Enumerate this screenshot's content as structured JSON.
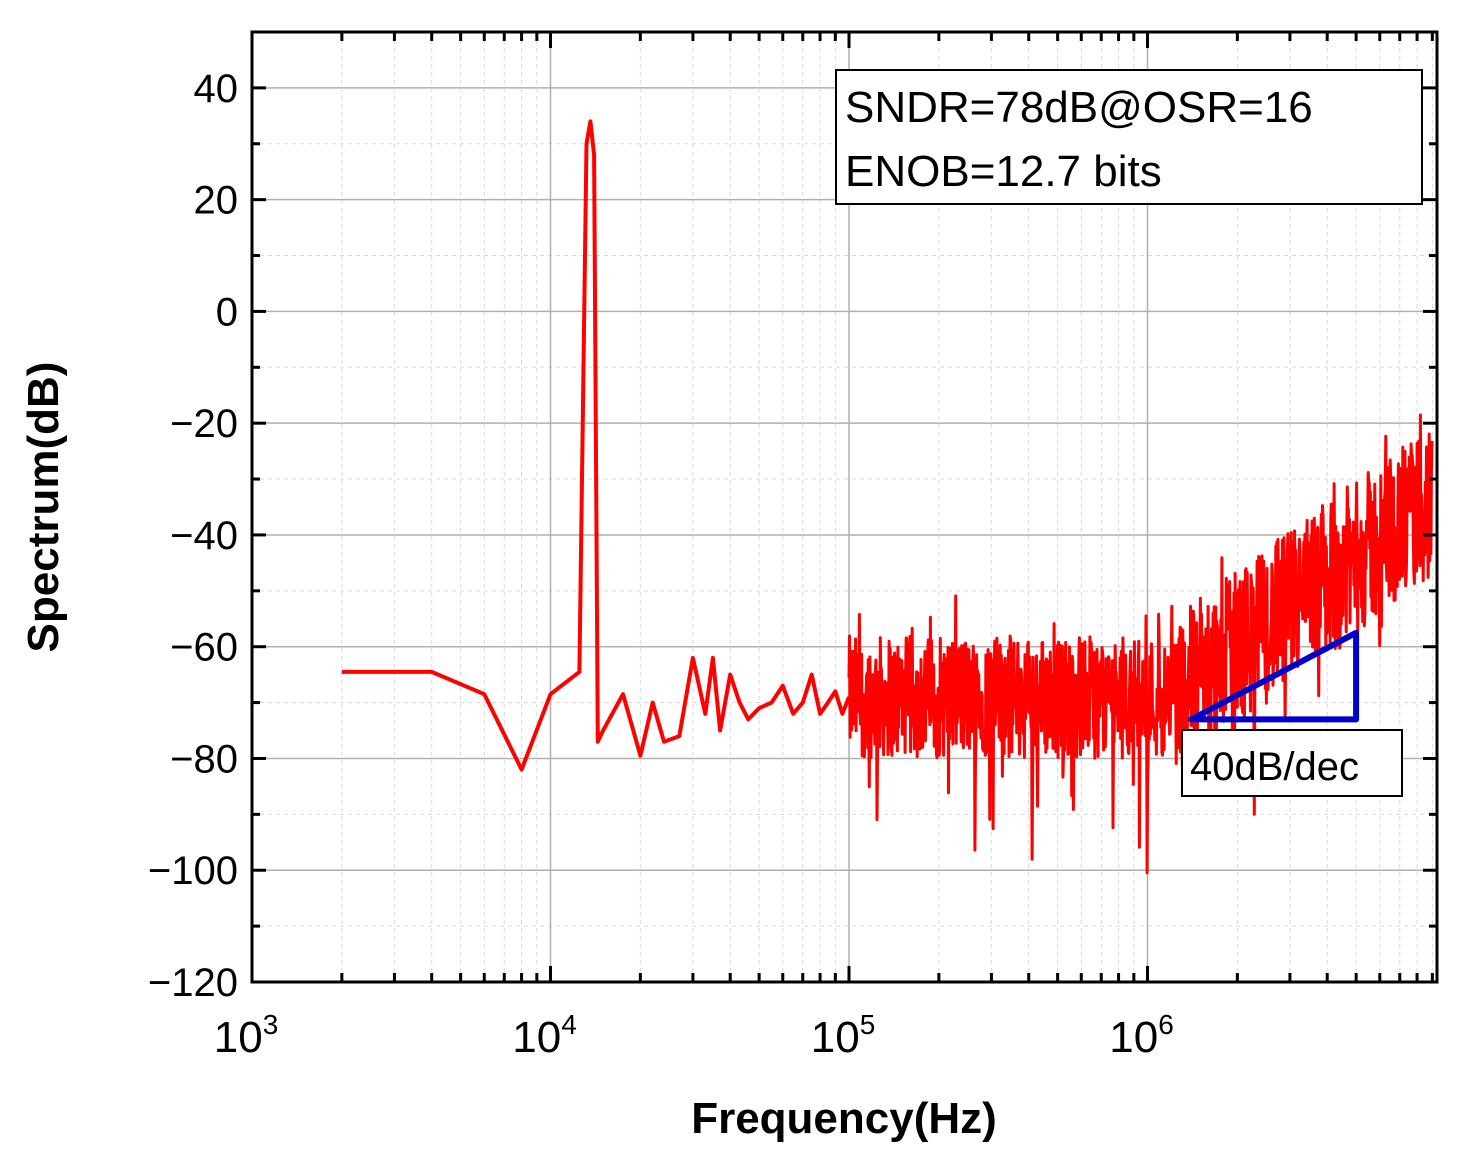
{
  "chart_data": {
    "type": "line",
    "title": "",
    "xlabel": "Frequency(Hz)",
    "ylabel": "Spectrum(dB)",
    "xscale": "log",
    "xlim": [
      1000,
      9000000
    ],
    "ylim": [
      -120,
      50
    ],
    "grid": true,
    "x_ticks": [
      {
        "value": 1000,
        "base": "10",
        "exp": "3"
      },
      {
        "value": 10000,
        "base": "10",
        "exp": "4"
      },
      {
        "value": 100000,
        "base": "10",
        "exp": "5"
      },
      {
        "value": 1000000,
        "base": "10",
        "exp": "6"
      }
    ],
    "y_ticks": [
      {
        "value": 40,
        "label": "40"
      },
      {
        "value": 20,
        "label": "20"
      },
      {
        "value": 0,
        "label": "0"
      },
      {
        "value": -20,
        "label": "−20"
      },
      {
        "value": -40,
        "label": "−40"
      },
      {
        "value": -60,
        "label": "−60"
      },
      {
        "value": -80,
        "label": "−80"
      },
      {
        "value": -100,
        "label": "−100"
      },
      {
        "value": -120,
        "label": "−120"
      }
    ],
    "series": [
      {
        "name": "Spectrum",
        "color": "#ff0000",
        "x": [
          2000,
          4000,
          6000,
          8000,
          10000,
          12500,
          13200,
          13600,
          14000,
          14400,
          15000,
          17500,
          20000,
          22000,
          24000,
          27000,
          30000,
          33000,
          35000,
          37000,
          40000,
          43000,
          46000,
          50000,
          55000,
          60000,
          65000,
          70000,
          75000,
          80000,
          85000,
          90000,
          95000,
          100000
        ],
        "values": [
          -64.5,
          -64.5,
          -68.5,
          -82,
          -68.5,
          -64.5,
          30,
          34,
          28,
          -77,
          -75,
          -68.5,
          -79.5,
          -70,
          -77,
          -76,
          -62,
          -72,
          -62,
          -75,
          -65,
          -70,
          -73,
          -71,
          -70,
          -67,
          -72,
          -70,
          -65,
          -72,
          -70,
          -68,
          -72,
          -69
        ],
        "noise_floor": {
          "from_hz": 100000,
          "to_hz": 9000000,
          "start_db": -69,
          "corner_hz": 1200000,
          "slope_db_per_dec": 40
        }
      }
    ],
    "annotations": [
      {
        "text": "SNDR=78dB@OSR=16"
      },
      {
        "text": "ENOB=12.7 bits"
      },
      {
        "text": "40dB/dec",
        "color": "#0000cc"
      }
    ]
  },
  "colors": {
    "signal": "#ff0000",
    "slope_marker": "#0000cc"
  }
}
